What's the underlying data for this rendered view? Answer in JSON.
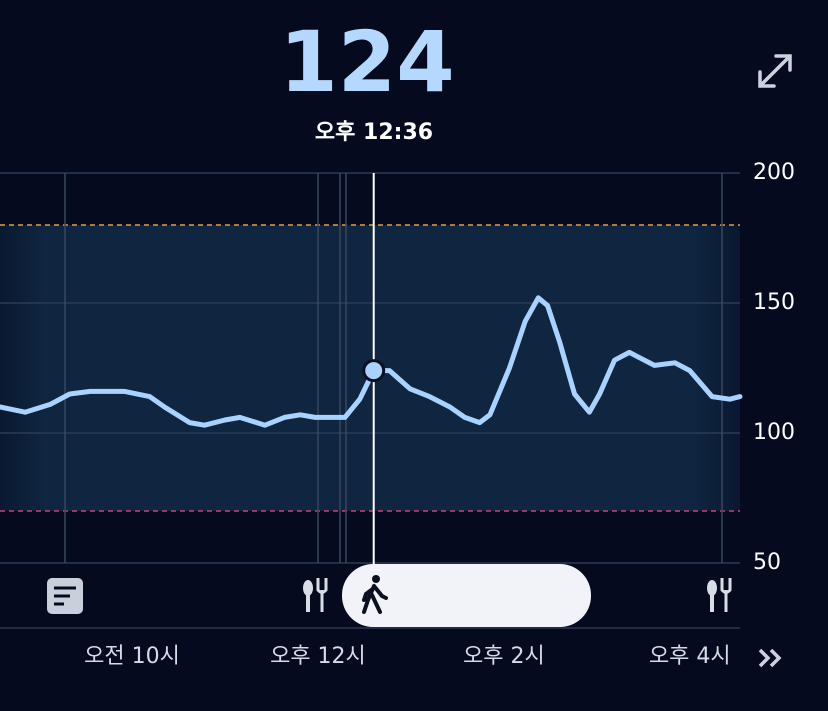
{
  "header": {
    "value": "124",
    "time": "오후 12:36"
  },
  "chart_data": {
    "type": "line",
    "x": [
      8.58,
      8.85,
      9.12,
      9.33,
      9.55,
      9.92,
      10.19,
      10.35,
      10.62,
      10.78,
      11.0,
      11.16,
      11.43,
      11.64,
      11.81,
      11.97,
      12.29,
      12.45,
      12.6,
      12.77,
      12.99,
      13.2,
      13.42,
      13.58,
      13.74,
      13.85,
      14.06,
      14.23,
      14.37,
      14.47,
      14.6,
      14.76,
      14.92,
      15.03,
      15.19,
      15.35,
      15.62,
      15.84,
      16.0,
      16.24,
      16.43,
      16.54
    ],
    "series": [
      {
        "color": "#a9d2ff",
        "values": [
          110,
          108,
          111,
          115,
          116,
          116,
          114,
          110,
          104,
          103,
          105,
          106,
          103,
          106,
          107,
          106,
          106,
          113,
          124,
          124,
          117,
          114,
          110,
          106,
          104,
          107,
          125,
          143,
          152,
          149,
          135,
          115,
          108,
          115,
          128,
          131,
          126,
          127,
          124,
          114,
          113,
          114
        ]
      }
    ],
    "xlim": [
      8.58,
      16.54
    ],
    "xticks": [
      {
        "value": 10,
        "label": "오전 10시"
      },
      {
        "value": 12,
        "label": "오후 12시"
      },
      {
        "value": 14,
        "label": "오후 2시"
      },
      {
        "value": 16,
        "label": "오후 4시"
      }
    ],
    "ylim": [
      50,
      200
    ],
    "yticks": [
      50,
      100,
      150,
      200
    ],
    "target_low": 70,
    "target_high": 180,
    "grid": true
  }
}
